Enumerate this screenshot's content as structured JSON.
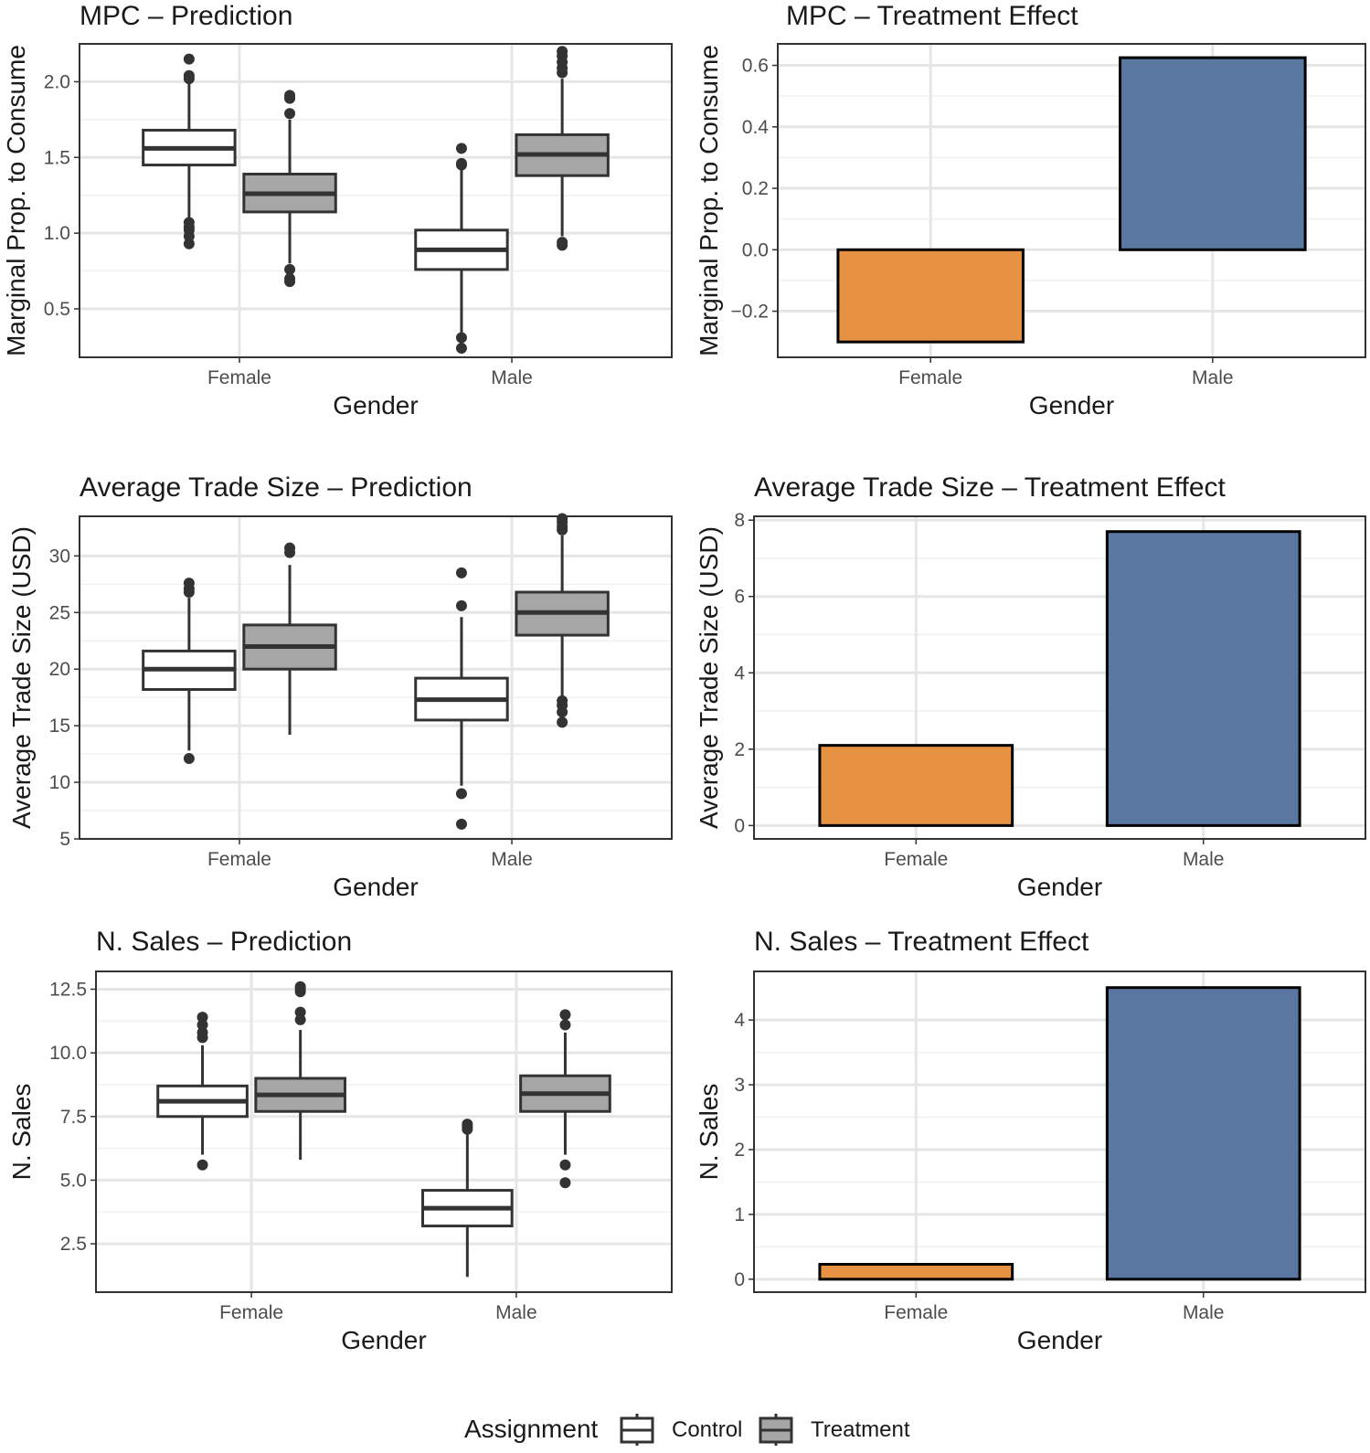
{
  "chart_data": [
    {
      "id": "p1",
      "type": "boxplot",
      "title": "MPC – Prediction",
      "xlabel": "Gender",
      "ylabel": "Marginal Prop. to Consume",
      "ylim": [
        0.18,
        2.25
      ],
      "yticks": [
        0.5,
        1.0,
        1.5,
        2.0
      ],
      "ytick_labels": [
        "0.5",
        "1.0",
        "1.5",
        "2.0"
      ],
      "categories": [
        "Female",
        "Male"
      ],
      "boxes": [
        {
          "category": "Female",
          "group": "Control",
          "q1": 1.45,
          "median": 1.56,
          "q3": 1.68,
          "whisker_low": 1.1,
          "whisker_high": 2.0,
          "outliers": [
            2.15,
            2.04,
            2.02,
            1.07,
            1.04,
            1.02,
            0.98,
            0.93
          ]
        },
        {
          "category": "Female",
          "group": "Treatment",
          "q1": 1.14,
          "median": 1.26,
          "q3": 1.39,
          "whisker_low": 0.8,
          "whisker_high": 1.75,
          "outliers": [
            1.91,
            1.89,
            1.79,
            0.76,
            0.7,
            0.68
          ]
        },
        {
          "category": "Male",
          "group": "Control",
          "q1": 0.76,
          "median": 0.89,
          "q3": 1.02,
          "whisker_low": 0.34,
          "whisker_high": 1.42,
          "outliers": [
            1.56,
            1.46,
            1.45,
            0.31,
            0.24
          ]
        },
        {
          "category": "Male",
          "group": "Treatment",
          "q1": 1.38,
          "median": 1.52,
          "q3": 1.65,
          "whisker_low": 0.98,
          "whisker_high": 2.02,
          "outliers": [
            2.2,
            2.17,
            2.13,
            2.09,
            2.06,
            0.94,
            0.92
          ]
        }
      ]
    },
    {
      "id": "p2",
      "type": "bar",
      "title": "MPC – Treatment Effect",
      "xlabel": "Gender",
      "ylabel": "Marginal Prop. to Consume",
      "ylim": [
        -0.35,
        0.67
      ],
      "yticks": [
        -0.2,
        0.0,
        0.2,
        0.4,
        0.6
      ],
      "ytick_labels": [
        "−0.2",
        "0.0",
        "0.2",
        "0.4",
        "0.6"
      ],
      "categories": [
        "Female",
        "Male"
      ],
      "values": [
        -0.3,
        0.625
      ],
      "colors": [
        "#E69242",
        "#5A77A1"
      ]
    },
    {
      "id": "p3",
      "type": "boxplot",
      "title": "Average Trade Size – Prediction",
      "xlabel": "Gender",
      "ylabel": "Average Trade Size (USD)",
      "ylim": [
        5,
        33.5
      ],
      "yticks": [
        5,
        10,
        15,
        20,
        25,
        30
      ],
      "ytick_labels": [
        "5",
        "10",
        "15",
        "20",
        "25",
        "30"
      ],
      "categories": [
        "Female",
        "Male"
      ],
      "boxes": [
        {
          "category": "Female",
          "group": "Control",
          "q1": 18.2,
          "median": 20.0,
          "q3": 21.6,
          "whisker_low": 12.8,
          "whisker_high": 26.3,
          "outliers": [
            27.6,
            27.1,
            26.8,
            12.1
          ]
        },
        {
          "category": "Female",
          "group": "Treatment",
          "q1": 20.0,
          "median": 22.0,
          "q3": 23.9,
          "whisker_low": 14.2,
          "whisker_high": 29.2,
          "outliers": [
            30.7,
            30.3
          ]
        },
        {
          "category": "Male",
          "group": "Control",
          "q1": 15.5,
          "median": 17.3,
          "q3": 19.2,
          "whisker_low": 9.7,
          "whisker_high": 24.6,
          "outliers": [
            28.5,
            25.6,
            9.0,
            6.3
          ]
        },
        {
          "category": "Male",
          "group": "Treatment",
          "q1": 23.0,
          "median": 25.0,
          "q3": 26.8,
          "whisker_low": 17.6,
          "whisker_high": 31.8,
          "outliers": [
            33.3,
            33.0,
            32.6,
            32.3,
            17.2,
            16.8,
            16.2,
            15.3
          ]
        }
      ]
    },
    {
      "id": "p4",
      "type": "bar",
      "title": "Average Trade Size – Treatment Effect",
      "xlabel": "Gender",
      "ylabel": "Average Trade Size (USD)",
      "ylim": [
        -0.35,
        8.1
      ],
      "yticks": [
        0,
        2,
        4,
        6,
        8
      ],
      "ytick_labels": [
        "0",
        "2",
        "4",
        "6",
        "8"
      ],
      "categories": [
        "Female",
        "Male"
      ],
      "values": [
        2.1,
        7.7
      ],
      "colors": [
        "#E69242",
        "#5A77A1"
      ]
    },
    {
      "id": "p5",
      "type": "boxplot",
      "title": "N. Sales – Prediction",
      "xlabel": "Gender",
      "ylabel": "N. Sales",
      "ylim": [
        0.6,
        13.2
      ],
      "yticks": [
        2.5,
        5.0,
        7.5,
        10.0,
        12.5
      ],
      "ytick_labels": [
        "2.5",
        "5.0",
        "7.5",
        "10.0",
        "12.5"
      ],
      "categories": [
        "Female",
        "Male"
      ],
      "boxes": [
        {
          "category": "Female",
          "group": "Control",
          "q1": 7.5,
          "median": 8.1,
          "q3": 8.7,
          "whisker_low": 6.0,
          "whisker_high": 10.3,
          "outliers": [
            11.4,
            11.1,
            10.8,
            10.6,
            5.6
          ]
        },
        {
          "category": "Female",
          "group": "Treatment",
          "q1": 7.7,
          "median": 8.35,
          "q3": 9.0,
          "whisker_low": 5.8,
          "whisker_high": 10.9,
          "outliers": [
            12.6,
            12.5,
            12.4,
            11.6,
            11.3
          ]
        },
        {
          "category": "Male",
          "group": "Control",
          "q1": 3.2,
          "median": 3.9,
          "q3": 4.6,
          "whisker_low": 1.2,
          "whisker_high": 6.8,
          "outliers": [
            7.2,
            7.1,
            7.0
          ]
        },
        {
          "category": "Male",
          "group": "Treatment",
          "q1": 7.7,
          "median": 8.4,
          "q3": 9.1,
          "whisker_low": 6.0,
          "whisker_high": 10.8,
          "outliers": [
            11.5,
            11.1,
            5.6,
            4.9
          ]
        }
      ]
    },
    {
      "id": "p6",
      "type": "bar",
      "title": "N. Sales – Treatment Effect",
      "xlabel": "Gender",
      "ylabel": "N. Sales",
      "ylim": [
        -0.2,
        4.75
      ],
      "yticks": [
        0,
        1,
        2,
        3,
        4
      ],
      "ytick_labels": [
        "0",
        "1",
        "2",
        "3",
        "4"
      ],
      "categories": [
        "Female",
        "Male"
      ],
      "values": [
        0.23,
        4.5
      ],
      "colors": [
        "#E69242",
        "#5A77A1"
      ]
    }
  ],
  "legend": {
    "title": "Assignment",
    "items": [
      {
        "label": "Control",
        "color": "#FFFFFF"
      },
      {
        "label": "Treatment",
        "color": "#A6A6A6"
      }
    ]
  }
}
